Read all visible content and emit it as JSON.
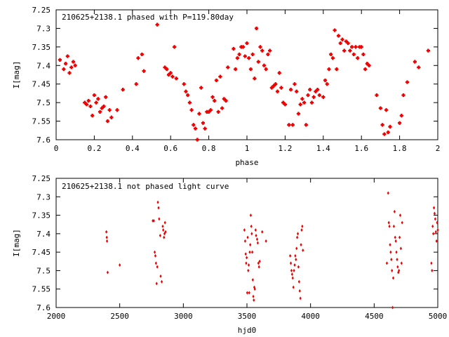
{
  "chart_data": [
    {
      "type": "scatter",
      "title": "210625+2138.1 phased with P=119.80day",
      "xlabel": "phase",
      "ylabel": "I[mag]",
      "xlim": [
        0,
        2
      ],
      "ylim": [
        7.25,
        7.6
      ],
      "y_inverted": true,
      "x_ticks": [
        0,
        0.2,
        0.4,
        0.6,
        0.8,
        1,
        1.2,
        1.4,
        1.6,
        1.8,
        2
      ],
      "x_tick_labels": [
        "0",
        "0.2",
        "0.4",
        "0.6",
        "0.8",
        "1",
        "1.2",
        "1.4",
        "1.6",
        "1.8",
        "2"
      ],
      "y_ticks": [
        7.25,
        7.3,
        7.35,
        7.4,
        7.45,
        7.5,
        7.55,
        7.6
      ],
      "y_tick_labels": [
        "7.25",
        "7.3",
        "7.35",
        "7.4",
        "7.45",
        "7.5",
        "7.55",
        "7.6"
      ],
      "grid": false,
      "marker": "filled-square-cross",
      "color": "#ee0000",
      "points": [
        [
          0.02,
          7.385
        ],
        [
          0.04,
          7.41
        ],
        [
          0.05,
          7.395
        ],
        [
          0.06,
          7.375
        ],
        [
          0.07,
          7.42
        ],
        [
          0.08,
          7.405
        ],
        [
          0.09,
          7.39
        ],
        [
          0.1,
          7.4
        ],
        [
          0.15,
          7.5
        ],
        [
          0.16,
          7.505
        ],
        [
          0.17,
          7.495
        ],
        [
          0.18,
          7.51
        ],
        [
          0.19,
          7.535
        ],
        [
          0.2,
          7.48
        ],
        [
          0.21,
          7.5
        ],
        [
          0.22,
          7.49
        ],
        [
          0.23,
          7.525
        ],
        [
          0.24,
          7.515
        ],
        [
          0.25,
          7.51
        ],
        [
          0.26,
          7.485
        ],
        [
          0.27,
          7.55
        ],
        [
          0.28,
          7.52
        ],
        [
          0.29,
          7.54
        ],
        [
          0.32,
          7.52
        ],
        [
          0.35,
          7.465
        ],
        [
          0.42,
          7.45
        ],
        [
          0.43,
          7.38
        ],
        [
          0.45,
          7.37
        ],
        [
          0.46,
          7.415
        ],
        [
          0.53,
          7.29
        ],
        [
          0.57,
          7.405
        ],
        [
          0.58,
          7.41
        ],
        [
          0.59,
          7.425
        ],
        [
          0.6,
          7.42
        ],
        [
          0.61,
          7.43
        ],
        [
          0.62,
          7.35
        ],
        [
          0.63,
          7.435
        ],
        [
          0.67,
          7.45
        ],
        [
          0.68,
          7.47
        ],
        [
          0.69,
          7.48
        ],
        [
          0.7,
          7.5
        ],
        [
          0.71,
          7.52
        ],
        [
          0.72,
          7.56
        ],
        [
          0.73,
          7.57
        ],
        [
          0.74,
          7.6
        ],
        [
          0.75,
          7.53
        ],
        [
          0.76,
          7.46
        ],
        [
          0.77,
          7.555
        ],
        [
          0.78,
          7.57
        ],
        [
          0.79,
          7.525
        ],
        [
          0.8,
          7.525
        ],
        [
          0.81,
          7.52
        ],
        [
          0.82,
          7.485
        ],
        [
          0.83,
          7.495
        ],
        [
          0.84,
          7.44
        ],
        [
          0.85,
          7.525
        ],
        [
          0.86,
          7.43
        ],
        [
          0.87,
          7.515
        ],
        [
          0.88,
          7.49
        ],
        [
          0.89,
          7.495
        ],
        [
          0.9,
          7.405
        ],
        [
          0.93,
          7.355
        ],
        [
          0.94,
          7.41
        ],
        [
          0.95,
          7.38
        ],
        [
          0.96,
          7.37
        ],
        [
          0.97,
          7.35
        ],
        [
          0.98,
          7.35
        ],
        [
          0.99,
          7.375
        ],
        [
          1.0,
          7.34
        ],
        [
          1.01,
          7.38
        ],
        [
          1.02,
          7.41
        ],
        [
          1.03,
          7.37
        ],
        [
          1.04,
          7.435
        ],
        [
          1.05,
          7.3
        ],
        [
          1.06,
          7.39
        ],
        [
          1.07,
          7.35
        ],
        [
          1.08,
          7.36
        ],
        [
          1.09,
          7.4
        ],
        [
          1.1,
          7.41
        ],
        [
          1.11,
          7.37
        ],
        [
          1.12,
          7.36
        ],
        [
          1.13,
          7.46
        ],
        [
          1.14,
          7.455
        ],
        [
          1.15,
          7.45
        ],
        [
          1.16,
          7.47
        ],
        [
          1.17,
          7.42
        ],
        [
          1.18,
          7.46
        ],
        [
          1.19,
          7.5
        ],
        [
          1.2,
          7.505
        ],
        [
          1.22,
          7.56
        ],
        [
          1.23,
          7.465
        ],
        [
          1.24,
          7.56
        ],
        [
          1.25,
          7.45
        ],
        [
          1.26,
          7.47
        ],
        [
          1.27,
          7.53
        ],
        [
          1.28,
          7.505
        ],
        [
          1.29,
          7.49
        ],
        [
          1.3,
          7.5
        ],
        [
          1.31,
          7.56
        ],
        [
          1.32,
          7.48
        ],
        [
          1.33,
          7.465
        ],
        [
          1.34,
          7.5
        ],
        [
          1.35,
          7.485
        ],
        [
          1.36,
          7.47
        ],
        [
          1.37,
          7.465
        ],
        [
          1.38,
          7.48
        ],
        [
          1.4,
          7.485
        ],
        [
          1.41,
          7.44
        ],
        [
          1.42,
          7.45
        ],
        [
          1.43,
          7.41
        ],
        [
          1.44,
          7.37
        ],
        [
          1.45,
          7.38
        ],
        [
          1.46,
          7.305
        ],
        [
          1.47,
          7.41
        ],
        [
          1.48,
          7.32
        ],
        [
          1.49,
          7.34
        ],
        [
          1.5,
          7.33
        ],
        [
          1.51,
          7.36
        ],
        [
          1.52,
          7.335
        ],
        [
          1.53,
          7.34
        ],
        [
          1.54,
          7.36
        ],
        [
          1.55,
          7.35
        ],
        [
          1.56,
          7.37
        ],
        [
          1.57,
          7.35
        ],
        [
          1.58,
          7.38
        ],
        [
          1.59,
          7.35
        ],
        [
          1.6,
          7.35
        ],
        [
          1.61,
          7.37
        ],
        [
          1.62,
          7.41
        ],
        [
          1.63,
          7.395
        ],
        [
          1.64,
          7.4
        ],
        [
          1.68,
          7.48
        ],
        [
          1.7,
          7.515
        ],
        [
          1.71,
          7.56
        ],
        [
          1.72,
          7.585
        ],
        [
          1.73,
          7.52
        ],
        [
          1.74,
          7.58
        ],
        [
          1.75,
          7.565
        ],
        [
          1.8,
          7.555
        ],
        [
          1.81,
          7.535
        ],
        [
          1.82,
          7.48
        ],
        [
          1.84,
          7.445
        ],
        [
          1.88,
          7.39
        ],
        [
          1.9,
          7.405
        ],
        [
          1.95,
          7.36
        ]
      ]
    },
    {
      "type": "scatter",
      "title": "210625+2138.1 not phased light curve",
      "xlabel": "hjd0",
      "ylabel": "I[mag]",
      "xlim": [
        2000,
        5000
      ],
      "ylim": [
        7.25,
        7.6
      ],
      "y_inverted": true,
      "x_ticks": [
        2000,
        2500,
        3000,
        3500,
        4000,
        4500,
        5000
      ],
      "x_tick_labels": [
        "2000",
        "2500",
        "3000",
        "3500",
        "4000",
        "4500",
        "5000"
      ],
      "y_ticks": [
        7.25,
        7.3,
        7.35,
        7.4,
        7.45,
        7.5,
        7.55,
        7.6
      ],
      "y_tick_labels": [
        "7.25",
        "7.3",
        "7.35",
        "7.4",
        "7.45",
        "7.5",
        "7.55",
        "7.6"
      ],
      "grid": false,
      "marker": "small-diamond",
      "color": "#ee0000",
      "points": [
        [
          2395,
          7.395
        ],
        [
          2398,
          7.41
        ],
        [
          2400,
          7.42
        ],
        [
          2405,
          7.505
        ],
        [
          2500,
          7.485
        ],
        [
          2760,
          7.365
        ],
        [
          2768,
          7.365
        ],
        [
          2775,
          7.45
        ],
        [
          2780,
          7.46
        ],
        [
          2785,
          7.48
        ],
        [
          2790,
          7.535
        ],
        [
          2795,
          7.49
        ],
        [
          2800,
          7.315
        ],
        [
          2805,
          7.33
        ],
        [
          2810,
          7.36
        ],
        [
          2818,
          7.405
        ],
        [
          2822,
          7.515
        ],
        [
          2830,
          7.53
        ],
        [
          2838,
          7.38
        ],
        [
          2842,
          7.39
        ],
        [
          2848,
          7.41
        ],
        [
          2852,
          7.4
        ],
        [
          2856,
          7.37
        ],
        [
          2860,
          7.395
        ],
        [
          3480,
          7.39
        ],
        [
          3486,
          7.42
        ],
        [
          3490,
          7.455
        ],
        [
          3494,
          7.48
        ],
        [
          3498,
          7.465
        ],
        [
          3502,
          7.56
        ],
        [
          3506,
          7.41
        ],
        [
          3510,
          7.5
        ],
        [
          3514,
          7.485
        ],
        [
          3518,
          7.56
        ],
        [
          3522,
          7.45
        ],
        [
          3526,
          7.43
        ],
        [
          3530,
          7.35
        ],
        [
          3534,
          7.38
        ],
        [
          3538,
          7.4
        ],
        [
          3542,
          7.45
        ],
        [
          3546,
          7.525
        ],
        [
          3550,
          7.57
        ],
        [
          3554,
          7.58
        ],
        [
          3558,
          7.545
        ],
        [
          3562,
          7.55
        ],
        [
          3568,
          7.39
        ],
        [
          3572,
          7.405
        ],
        [
          3580,
          7.415
        ],
        [
          3585,
          7.425
        ],
        [
          3590,
          7.48
        ],
        [
          3595,
          7.49
        ],
        [
          3600,
          7.475
        ],
        [
          3620,
          7.395
        ],
        [
          3650,
          7.42
        ],
        [
          3840,
          7.46
        ],
        [
          3845,
          7.48
        ],
        [
          3850,
          7.5
        ],
        [
          3855,
          7.51
        ],
        [
          3860,
          7.52
        ],
        [
          3865,
          7.545
        ],
        [
          3870,
          7.5
        ],
        [
          3875,
          7.485
        ],
        [
          3880,
          7.46
        ],
        [
          3885,
          7.47
        ],
        [
          3890,
          7.44
        ],
        [
          3895,
          7.41
        ],
        [
          3900,
          7.4
        ],
        [
          3905,
          7.49
        ],
        [
          3910,
          7.53
        ],
        [
          3915,
          7.555
        ],
        [
          3920,
          7.575
        ],
        [
          3925,
          7.43
        ],
        [
          3930,
          7.39
        ],
        [
          3935,
          7.38
        ],
        [
          3940,
          7.445
        ],
        [
          4600,
          7.48
        ],
        [
          4610,
          7.29
        ],
        [
          4615,
          7.37
        ],
        [
          4620,
          7.38
        ],
        [
          4625,
          7.43
        ],
        [
          4630,
          7.45
        ],
        [
          4635,
          7.47
        ],
        [
          4640,
          7.5
        ],
        [
          4645,
          7.6
        ],
        [
          4650,
          7.52
        ],
        [
          4655,
          7.38
        ],
        [
          4660,
          7.34
        ],
        [
          4665,
          7.41
        ],
        [
          4670,
          7.42
        ],
        [
          4675,
          7.45
        ],
        [
          4680,
          7.47
        ],
        [
          4685,
          7.49
        ],
        [
          4690,
          7.505
        ],
        [
          4695,
          7.5
        ],
        [
          4700,
          7.41
        ],
        [
          4705,
          7.35
        ],
        [
          4710,
          7.44
        ],
        [
          4715,
          7.48
        ],
        [
          4720,
          7.37
        ],
        [
          4950,
          7.48
        ],
        [
          4955,
          7.5
        ],
        [
          4960,
          7.38
        ],
        [
          4965,
          7.4
        ],
        [
          4970,
          7.33
        ],
        [
          4975,
          7.345
        ],
        [
          4980,
          7.36
        ],
        [
          4985,
          7.395
        ],
        [
          4990,
          7.42
        ],
        [
          4995,
          7.37
        ],
        [
          5000,
          7.39
        ]
      ]
    }
  ]
}
